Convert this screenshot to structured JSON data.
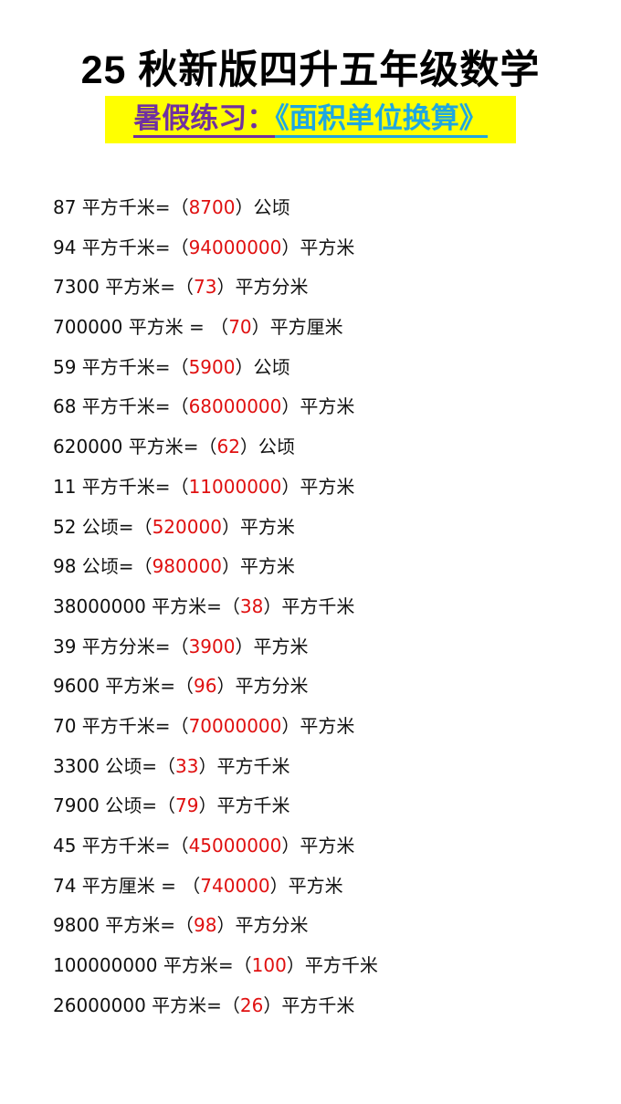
{
  "title": "25 秋新版四升五年级数学",
  "subtitle": {
    "part1": "暑假练习：",
    "part2": "《面积单位换算》"
  },
  "colors": {
    "answer": "#e01010",
    "subtitle_purple": "#7030a0",
    "subtitle_blue": "#1fa7e0",
    "highlight": "#ffff00"
  },
  "rows": [
    {
      "q": "87 平方千米=（",
      "a": "8700",
      "u": "）公顷"
    },
    {
      "q": "94 平方千米=（",
      "a": "94000000",
      "u": "）平方米"
    },
    {
      "q": "7300 平方米=（",
      "a": "73",
      "u": "）平方分米"
    },
    {
      "q": "700000 平方米 = （",
      "a": "70",
      "u": "）平方厘米"
    },
    {
      "q": "59 平方千米=（",
      "a": "5900",
      "u": "）公顷"
    },
    {
      "q": "68 平方千米=（",
      "a": "68000000",
      "u": "）平方米"
    },
    {
      "q": "620000 平方米=（",
      "a": "62",
      "u": "）公顷"
    },
    {
      "q": "11 平方千米=（",
      "a": "11000000",
      "u": "）平方米"
    },
    {
      "q": "52 公顷=（",
      "a": "520000",
      "u": "）平方米"
    },
    {
      "q": "98 公顷=（",
      "a": "980000",
      "u": "）平方米"
    },
    {
      "q": "38000000 平方米=（",
      "a": "38",
      "u": "）平方千米"
    },
    {
      "q": "39 平方分米=（",
      "a": "3900",
      "u": "）平方米"
    },
    {
      "q": "9600 平方米=（",
      "a": "96",
      "u": "）平方分米"
    },
    {
      "q": "70 平方千米=（",
      "a": "70000000",
      "u": "）平方米"
    },
    {
      "q": "3300 公顷=（",
      "a": "33",
      "u": "）平方千米"
    },
    {
      "q": "7900 公顷=（",
      "a": "79",
      "u": "）平方千米"
    },
    {
      "q": "45 平方千米=（",
      "a": "45000000",
      "u": "）平方米"
    },
    {
      "q": "74 平方厘米 = （",
      "a": "740000",
      "u": "）平方米"
    },
    {
      "q": "9800 平方米=（",
      "a": "98",
      "u": "）平方分米"
    },
    {
      "q": "100000000 平方米=（",
      "a": "100",
      "u": "）平方千米"
    },
    {
      "q": "26000000 平方米=（",
      "a": "26",
      "u": "）平方千米"
    }
  ]
}
